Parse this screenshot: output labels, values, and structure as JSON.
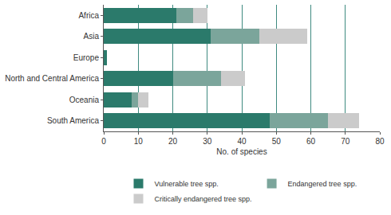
{
  "chart_data": {
    "type": "bar",
    "orientation": "horizontal",
    "stacked": true,
    "categories": [
      "Africa",
      "Asia",
      "Europe",
      "North and Central America",
      "Oceania",
      "South America"
    ],
    "series": [
      {
        "name": "Vulnerable tree spp.",
        "color": "#2b7a6b",
        "values": [
          21,
          31,
          1,
          20,
          8,
          48
        ]
      },
      {
        "name": "Endangered tree spp.",
        "color": "#7ba59b",
        "values": [
          5,
          14,
          0,
          14,
          2,
          17
        ]
      },
      {
        "name": "Critically endangered tree spp.",
        "color": "#cbcbcb",
        "values": [
          4,
          14,
          0,
          7,
          3,
          9
        ]
      }
    ],
    "xlabel": "No. of species",
    "xlim": [
      0,
      80
    ],
    "xticks": [
      0,
      10,
      20,
      30,
      40,
      50,
      60,
      70,
      80
    ],
    "grid": true,
    "legend": "bottom"
  }
}
